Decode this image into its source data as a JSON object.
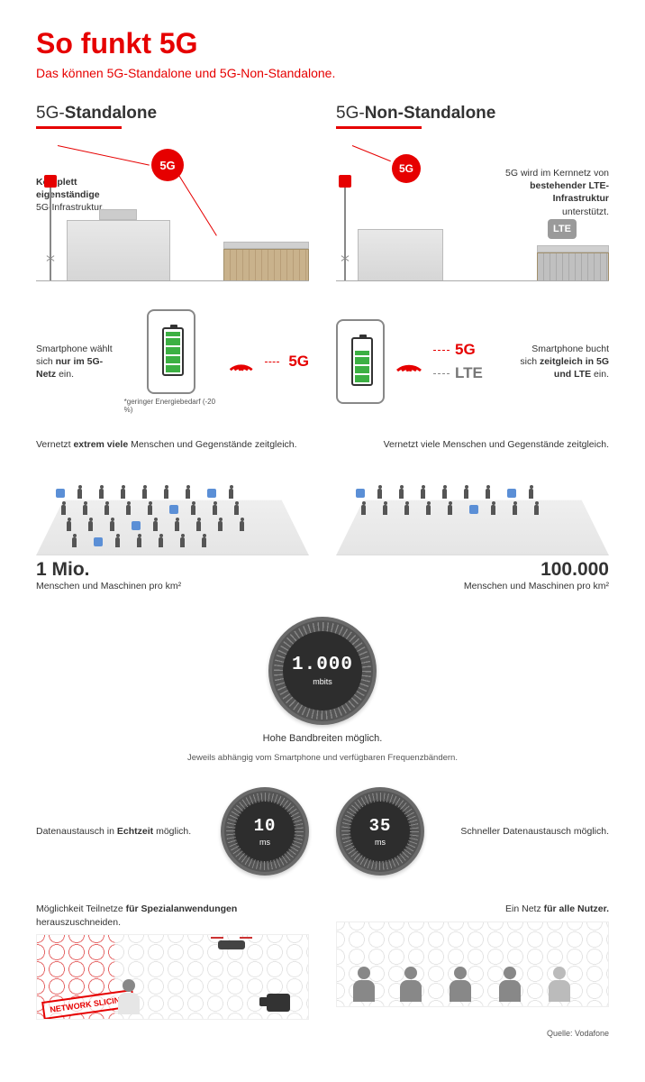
{
  "colors": {
    "brand": "#e60000",
    "text": "#333333",
    "gray": "#888888",
    "lte_badge": "#9a9a9a",
    "gauge_bg": "#2d2d2d",
    "green": "#3cb043"
  },
  "title": "So funkt 5G",
  "subtitle": "Das können 5G-Standalone und 5G-Non-Standalone.",
  "left_heading_pre": "5G-",
  "left_heading_bold": "Standalone",
  "right_heading_pre": "5G-",
  "right_heading_bold": "Non-Standalone",
  "r1": {
    "left_text_bold": "Komplett eigenständige",
    "left_text_rest": "5G-Infrastruktur.",
    "right_text_pre": "5G wird im Kernnetz von",
    "right_text_bold": "bestehender LTE-Infrastruktur",
    "right_text_post": "unterstützt.",
    "badge_5g": "5G",
    "badge_lte": "LTE"
  },
  "r2": {
    "left_text_pre": "Smartphone wählt sich",
    "left_text_bold": "nur im 5G-Netz",
    "left_text_post": " ein.",
    "left_note": "*geringer Energiebedarf (-20 %)",
    "left_batt_pct": 90,
    "right_text_pre": "Smartphone bucht sich",
    "right_text_bold": "zeitgleich in 5G und LTE",
    "right_text_post": " ein.",
    "right_batt_pct": 70,
    "label_5g": "5G",
    "label_lte": "LTE"
  },
  "r3": {
    "left_text_pre": "Vernetzt ",
    "left_text_bold": "extrem viele",
    "left_text_post": " Menschen und Gegenstände zeitgleich.",
    "left_num": "1 Mio.",
    "left_sub": "Menschen und Maschinen pro km²",
    "left_crowd_count": 34,
    "right_text": "Vernetzt viele Menschen und Gegenstände zeitgleich.",
    "right_num": "100.000",
    "right_sub": "Menschen und Maschinen pro km²",
    "right_crowd_count": 18
  },
  "gauge_center": {
    "value": "1.000",
    "unit": "mbits",
    "caption": "Hohe Bandbreiten möglich.",
    "subcaption": "Jeweils abhängig vom Smartphone und verfügbaren Frequenzbändern."
  },
  "gauge_split": {
    "left_text_pre": "Datenaustausch in ",
    "left_text_bold": "Echtzeit",
    "left_text_post": " möglich.",
    "left_value": "10",
    "left_unit": "ms",
    "right_text": "Schneller Datenaustausch möglich.",
    "right_value": "35",
    "right_unit": "ms"
  },
  "r6": {
    "left_text_pre": "Möglichkeit Teilnetze ",
    "left_text_bold": "für Spezialanwendungen",
    "left_text_post": " herauszuschneiden.",
    "stamp": "NETWORK SLICING",
    "right_text_pre": "Ein Netz ",
    "right_text_bold": "für alle Nutzer."
  },
  "source": "Quelle: Vodafone"
}
